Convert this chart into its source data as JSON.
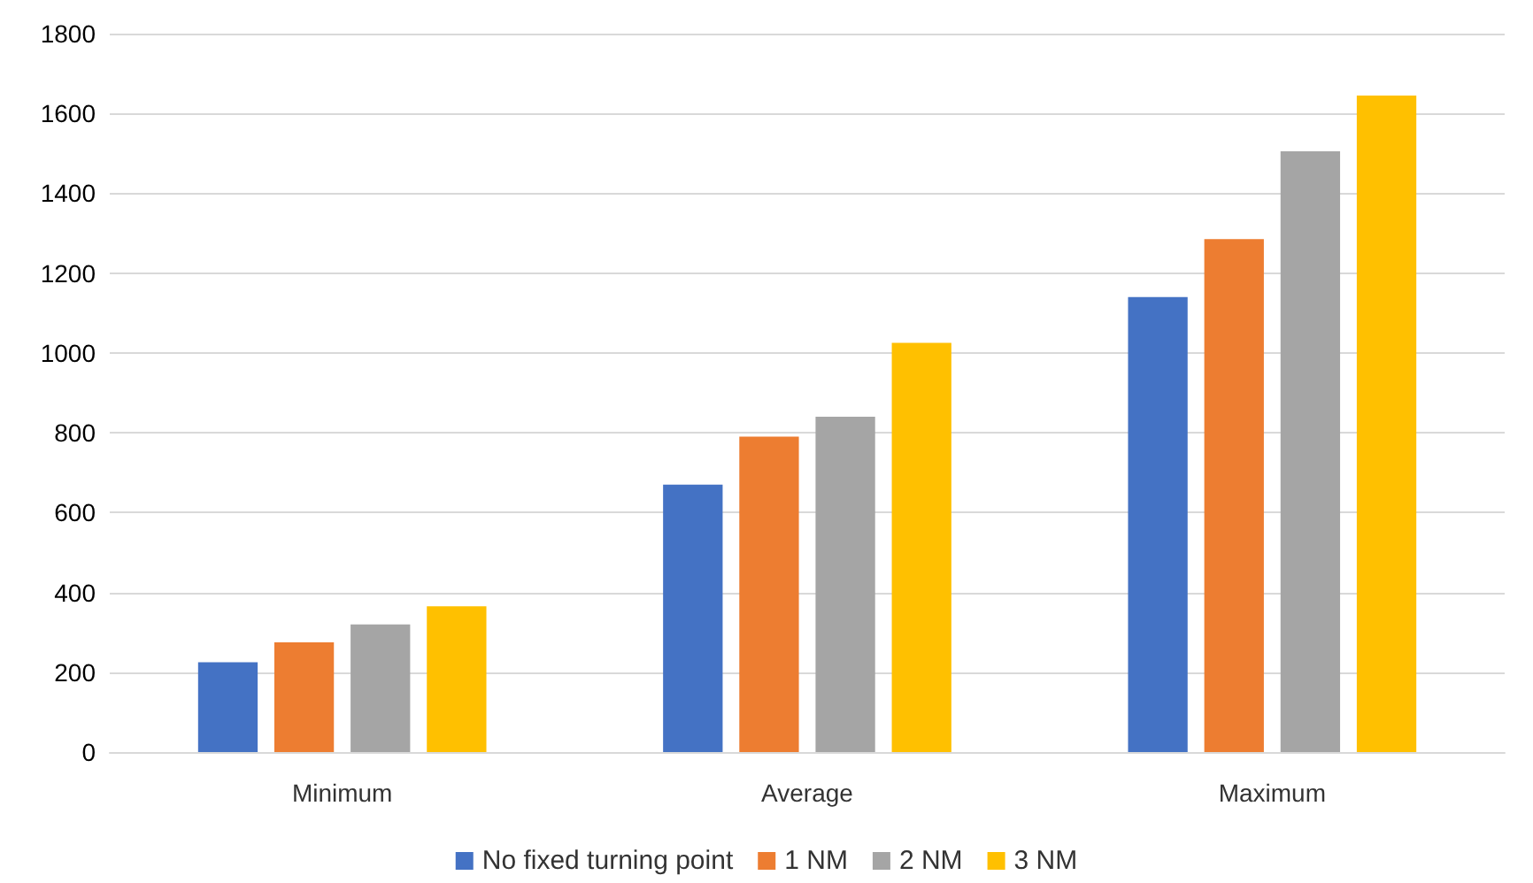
{
  "chart_data": {
    "type": "bar",
    "categories": [
      "Minimum",
      "Average",
      "Maximum"
    ],
    "series": [
      {
        "name": "No fixed turning point",
        "color": "#4472c4",
        "values": [
          225,
          670,
          1140
        ]
      },
      {
        "name": "1 NM",
        "color": "#ed7d31",
        "values": [
          275,
          790,
          1285
        ]
      },
      {
        "name": "2 NM",
        "color": "#a5a5a5",
        "values": [
          320,
          840,
          1505
        ]
      },
      {
        "name": "3 NM",
        "color": "#ffc000",
        "values": [
          365,
          1025,
          1645
        ]
      }
    ],
    "ylim": [
      0,
      1800
    ],
    "yticks": [
      0,
      200,
      400,
      600,
      800,
      1000,
      1200,
      1400,
      1600,
      1800
    ],
    "grid": "y",
    "legend": "bottom"
  }
}
